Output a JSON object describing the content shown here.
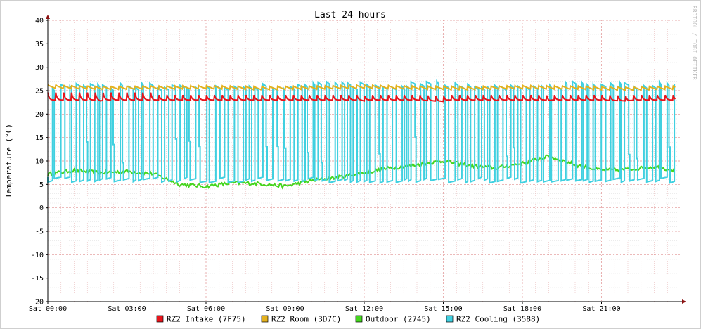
{
  "chart_data": {
    "type": "line",
    "title": "Last 24 hours",
    "ylabel": "Temperature (°C)",
    "watermark": "RRDTOOL / TOBI OETIKER",
    "ylim": [
      -20,
      40
    ],
    "yticks": [
      40,
      35,
      30,
      25,
      20,
      15,
      10,
      5,
      0,
      -5,
      -10,
      -15,
      -20
    ],
    "xlim": [
      "Sat 00:00",
      "Sun 00:00"
    ],
    "xtick_labels": [
      "Sat 00:00",
      "Sat 03:00",
      "Sat 06:00",
      "Sat 09:00",
      "Sat 12:00",
      "Sat 15:00",
      "Sat 18:00",
      "Sat 21:00"
    ],
    "grid": true,
    "legend_position": "bottom",
    "series": [
      {
        "name": "RZ2 Intake (7F75)",
        "color": "#e8141b",
        "x_hours": [
          0,
          1,
          2,
          3,
          4,
          5,
          6,
          7,
          8,
          9,
          10,
          11,
          12,
          13,
          14,
          15,
          16,
          17,
          18,
          19,
          20,
          21,
          22,
          23.8
        ],
        "values": [
          23.0,
          24.5,
          22.8,
          24.3,
          22.9,
          24.4,
          23.0,
          24.5,
          22.9,
          24.4,
          23.0,
          24.3,
          22.8,
          24.3,
          23.0,
          22.7,
          24.3,
          22.9,
          24.2,
          22.8,
          24.4,
          23.0,
          22.8,
          24.4
        ]
      },
      {
        "name": "RZ2 Room (3D7C)",
        "color": "#e3b11e",
        "x_hours": [
          0,
          2,
          4,
          6,
          8,
          10,
          12,
          14,
          16,
          18,
          20,
          22,
          23.8
        ],
        "values": [
          25.6,
          25.3,
          25.4,
          25.5,
          25.3,
          25.4,
          25.6,
          25.4,
          25.3,
          25.5,
          25.4,
          25.2,
          25.4
        ]
      },
      {
        "name": "Outdoor (2745)",
        "color": "#44d61e",
        "x_hours": [
          0,
          1,
          2,
          3,
          4,
          5,
          6,
          7,
          8,
          9,
          10,
          11,
          12,
          13,
          14,
          15,
          16,
          17,
          18,
          19,
          20,
          21,
          22,
          23,
          23.8
        ],
        "values": [
          7.2,
          8.0,
          7.5,
          7.8,
          7.3,
          5.0,
          4.6,
          5.3,
          5.2,
          4.6,
          5.8,
          6.5,
          7.5,
          8.5,
          9.2,
          10.0,
          9.0,
          8.5,
          9.5,
          11.0,
          9.2,
          8.0,
          8.2,
          8.8,
          8.0
        ]
      },
      {
        "name": "RZ2 Cooling (3588)",
        "color": "#40d0e0",
        "x_hours": [
          0,
          23.8
        ],
        "values_high": [
          27.0,
          27.0
        ],
        "values_low": [
          5.6,
          5.6
        ]
      }
    ]
  }
}
